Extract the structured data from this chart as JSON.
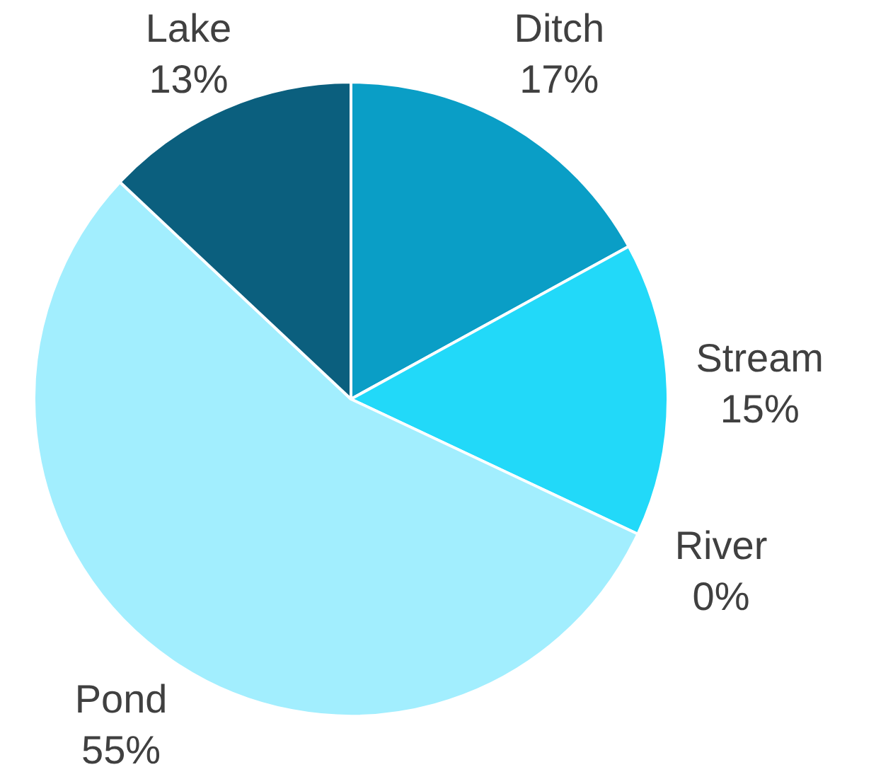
{
  "chart_data": {
    "type": "pie",
    "categories": [
      "Ditch",
      "Stream",
      "River",
      "Pond",
      "Lake"
    ],
    "values": [
      17,
      15,
      0,
      55,
      13
    ],
    "colors": [
      "#0a9ec6",
      "#22d9f9",
      "#1890b0",
      "#a2eefe",
      "#0b5f7e"
    ],
    "value_labels": [
      "17%",
      "15%",
      "0%",
      "55%",
      "13%"
    ],
    "legend": false
  }
}
